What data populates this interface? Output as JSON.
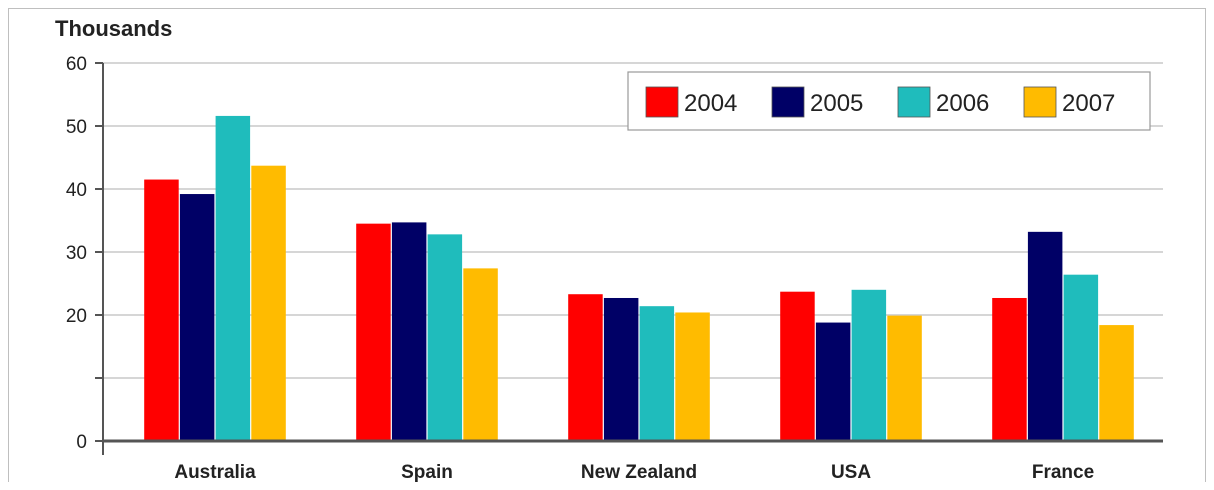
{
  "chart_data": {
    "type": "bar",
    "ylabel": "Thousands",
    "ylim": [
      0,
      60
    ],
    "yticks": [
      0,
      10,
      20,
      30,
      40,
      50,
      60
    ],
    "ytick_labels": [
      "0",
      "",
      "20",
      "30",
      "40",
      "50",
      "60"
    ],
    "grid": true,
    "legend_position": "top-right",
    "categories": [
      "Australia",
      "Spain",
      "New Zealand",
      "USA",
      "France"
    ],
    "series": [
      {
        "name": "2004",
        "color": "#ff0000",
        "values": [
          41.5,
          34.5,
          23.3,
          23.7,
          22.7
        ]
      },
      {
        "name": "2005",
        "color": "#000066",
        "values": [
          39.2,
          34.7,
          22.7,
          18.8,
          33.2
        ]
      },
      {
        "name": "2006",
        "color": "#1fbcbc",
        "values": [
          51.6,
          32.8,
          21.4,
          24.0,
          26.4
        ]
      },
      {
        "name": "2007",
        "color": "#ffbb00",
        "values": [
          43.7,
          27.4,
          20.4,
          19.9,
          18.4
        ]
      }
    ]
  }
}
